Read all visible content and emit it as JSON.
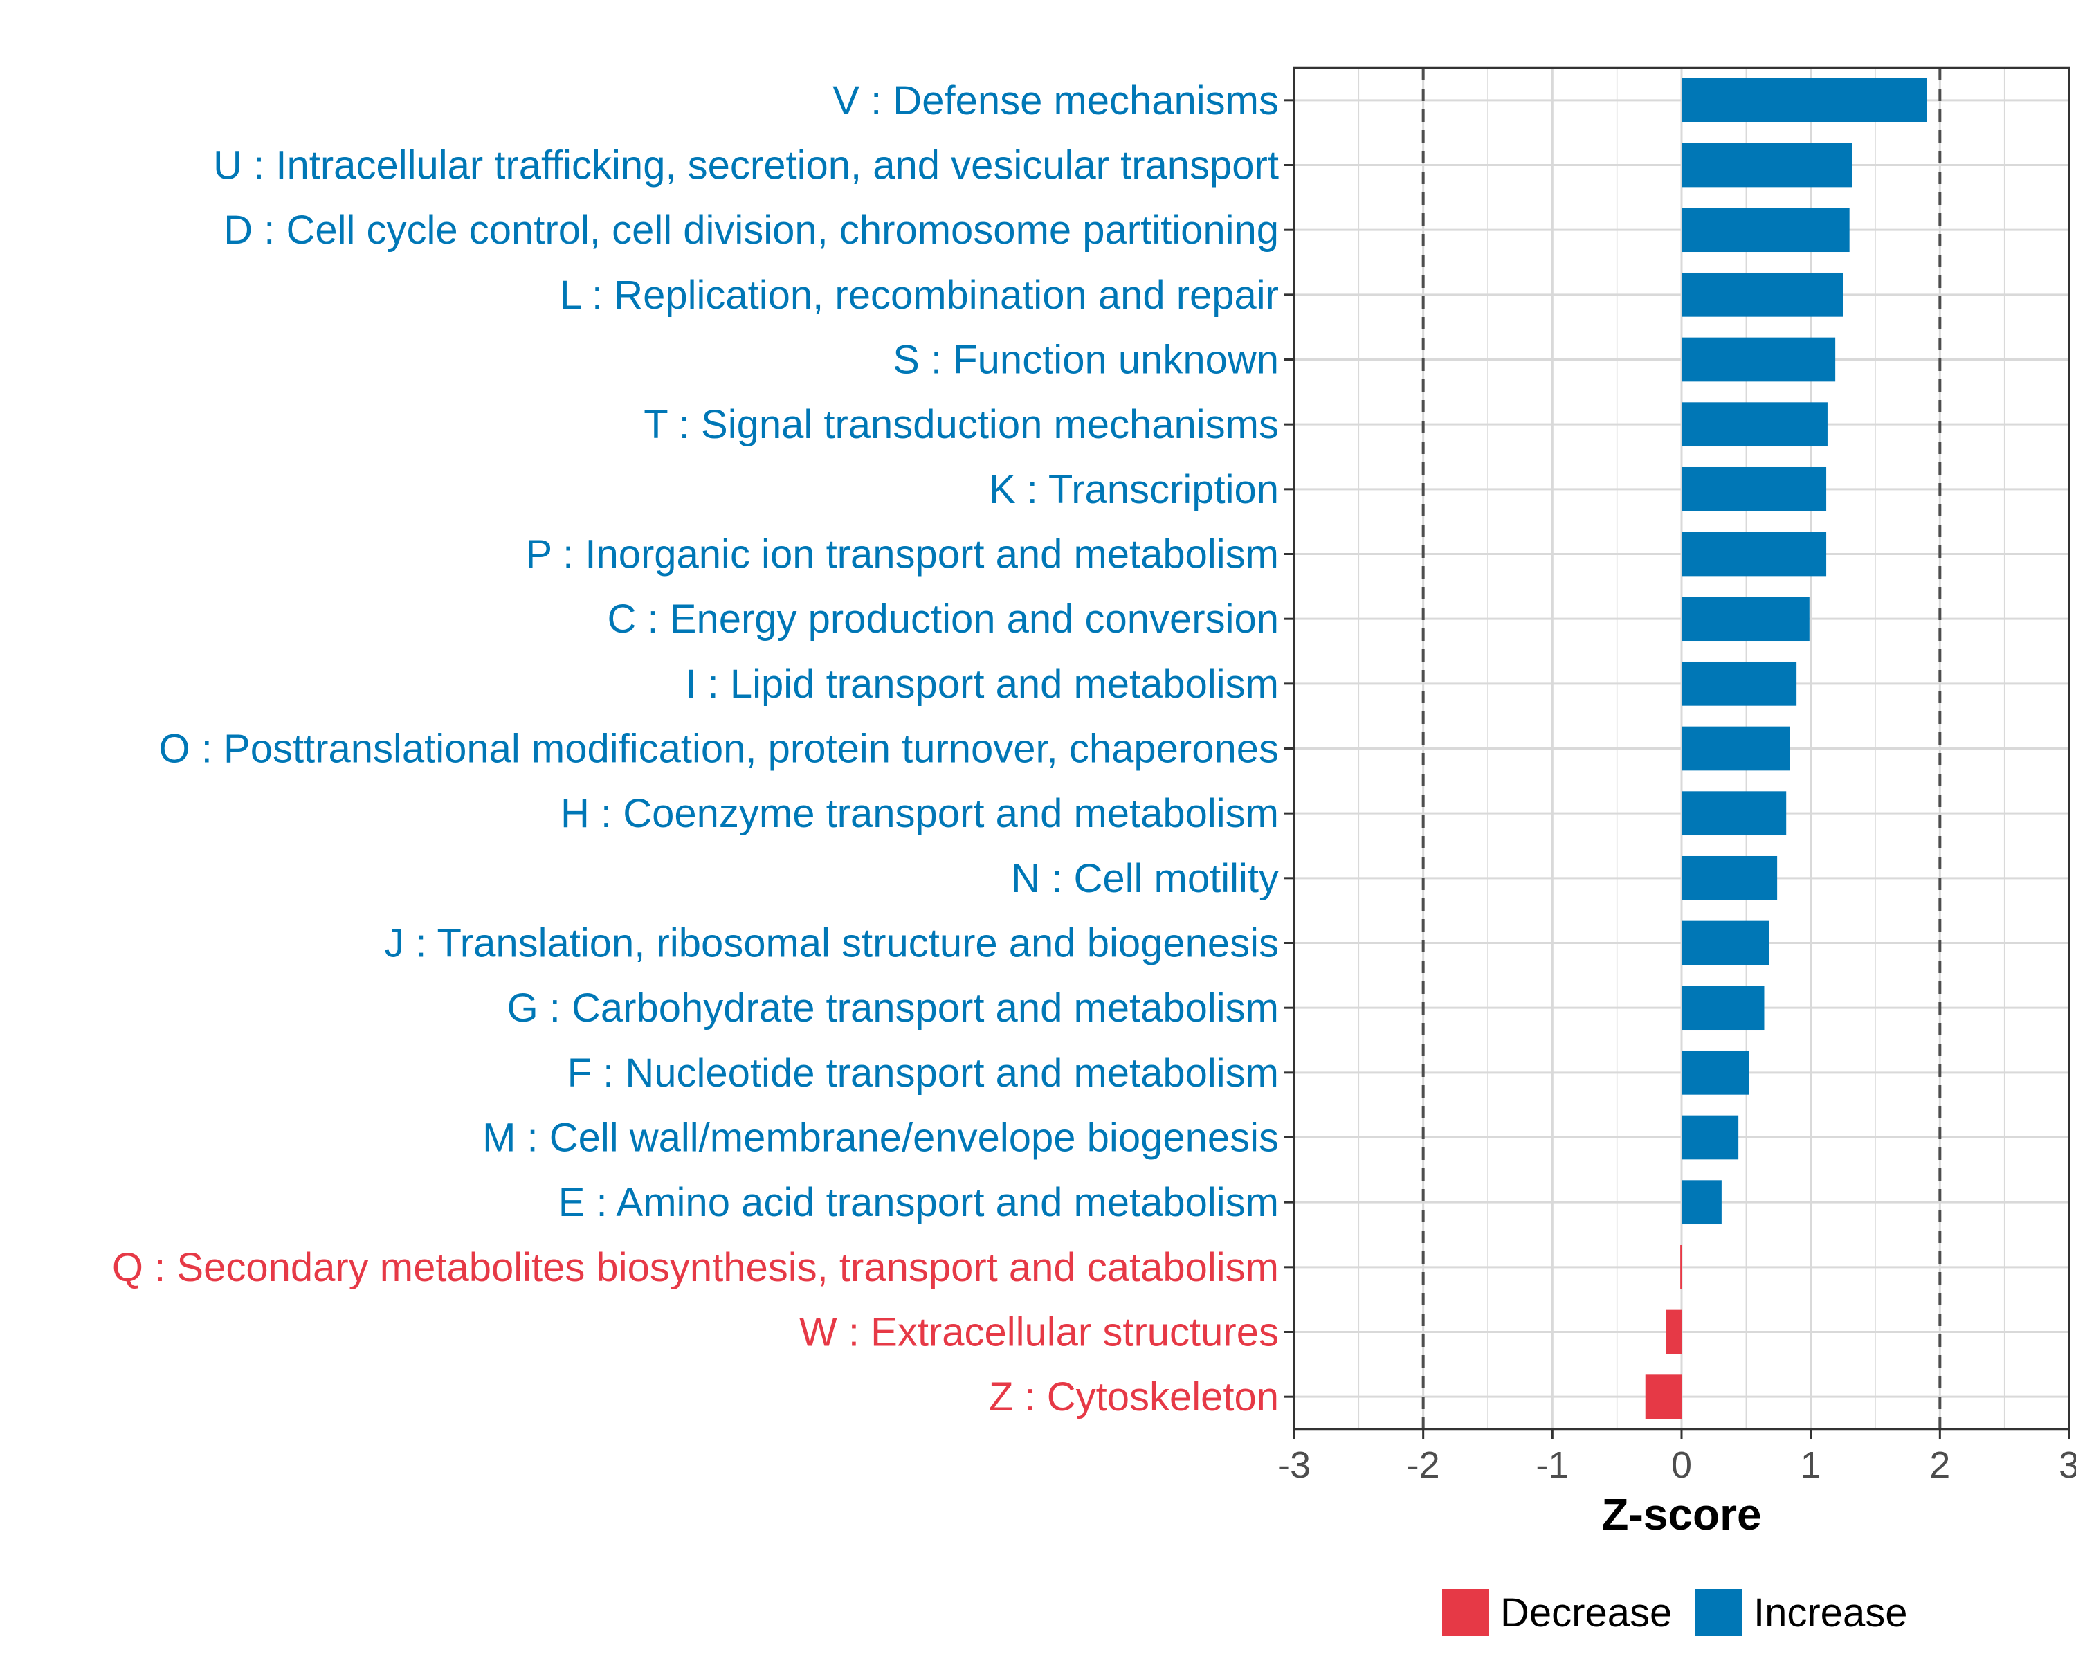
{
  "chart_data": {
    "type": "bar",
    "orientation": "horizontal",
    "xlabel": "Z-score",
    "ylabel": "",
    "xlim": [
      -3,
      3
    ],
    "xticks": [
      "-3",
      "-2",
      "-1",
      "0",
      "1",
      "2",
      "3"
    ],
    "reference_lines": [
      -2,
      2
    ],
    "grid": true,
    "categories": [
      "V : Defense mechanisms",
      "U : Intracellular trafficking, secretion, and vesicular transport",
      "D : Cell cycle control, cell division, chromosome partitioning",
      "L : Replication, recombination and repair",
      "S : Function unknown",
      "T : Signal transduction mechanisms",
      "K : Transcription",
      "P : Inorganic ion transport and metabolism",
      "C : Energy production and conversion",
      "I : Lipid transport and metabolism",
      "O : Posttranslational modification, protein turnover, chaperones",
      "H : Coenzyme transport and metabolism",
      "N : Cell motility",
      "J : Translation, ribosomal structure and biogenesis",
      "G : Carbohydrate transport and metabolism",
      "F : Nucleotide transport and metabolism",
      "M : Cell wall/membrane/envelope biogenesis",
      "E : Amino acid transport and metabolism",
      "Q : Secondary metabolites biosynthesis, transport and catabolism",
      "W : Extracellular structures",
      "Z : Cytoskeleton"
    ],
    "values": [
      1.9,
      1.32,
      1.3,
      1.25,
      1.19,
      1.13,
      1.12,
      1.12,
      0.99,
      0.89,
      0.84,
      0.81,
      0.74,
      0.68,
      0.64,
      0.52,
      0.44,
      0.31,
      -0.01,
      -0.12,
      -0.28
    ],
    "groups": [
      "Increase",
      "Increase",
      "Increase",
      "Increase",
      "Increase",
      "Increase",
      "Increase",
      "Increase",
      "Increase",
      "Increase",
      "Increase",
      "Increase",
      "Increase",
      "Increase",
      "Increase",
      "Increase",
      "Increase",
      "Increase",
      "Decrease",
      "Decrease",
      "Decrease"
    ],
    "legend": {
      "position": "bottom",
      "items": [
        {
          "label": "Decrease",
          "color": "#e63946"
        },
        {
          "label": "Increase",
          "color": "#0077b6"
        }
      ]
    }
  },
  "colors": {
    "increase": "#0077b6",
    "decrease": "#e63946",
    "grid": "#d9d9d9",
    "reference_line": "#4d4d4d"
  }
}
